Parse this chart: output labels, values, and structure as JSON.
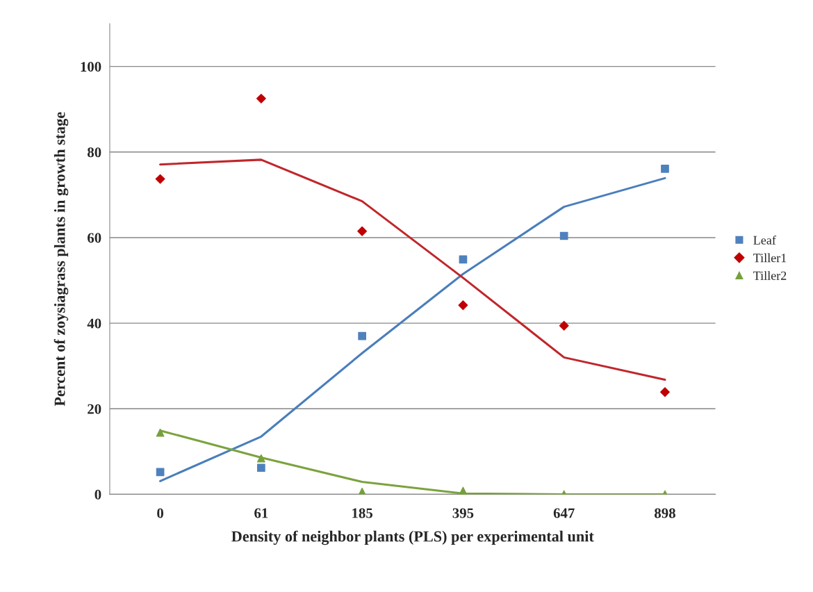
{
  "chart_data": {
    "type": "scatter",
    "xlabel": "Density of neighbor plants (PLS) per experimental unit",
    "ylabel": "Percent of zoysiagrass plants in growth stage",
    "categories": [
      "0",
      "61",
      "185",
      "395",
      "647",
      "898"
    ],
    "series": [
      {
        "name": "Leaf",
        "marker": "square",
        "color": "#4f81bd",
        "values": [
          5.2,
          6.2,
          37.0,
          54.9,
          60.4,
          76.1
        ]
      },
      {
        "name": "Tiller1",
        "marker": "diamond",
        "color": "#c00000",
        "values": [
          73.7,
          92.5,
          61.5,
          44.2,
          39.4,
          23.9
        ]
      },
      {
        "name": "Tiller2",
        "marker": "triangle",
        "color": "#77a03c",
        "values": [
          14.4,
          8.4,
          0.6,
          0.8,
          0,
          0
        ]
      },
      {
        "type": "line",
        "color": "#4a7ebb",
        "values": [
          3.1,
          13.5,
          33,
          51.5,
          67.2,
          73.9
        ]
      },
      {
        "type": "line",
        "color": "#c0262b",
        "values": [
          77.1,
          78.2,
          68.5,
          50.6,
          32,
          26.8
        ]
      },
      {
        "type": "line",
        "color": "#7ba33e",
        "values": [
          14.9,
          8.6,
          2.9,
          0.2,
          0,
          0
        ]
      }
    ],
    "ylim": [
      0,
      110
    ],
    "yticks": [
      0,
      20,
      40,
      60,
      80,
      100
    ],
    "grid": "y",
    "legend": "right"
  }
}
